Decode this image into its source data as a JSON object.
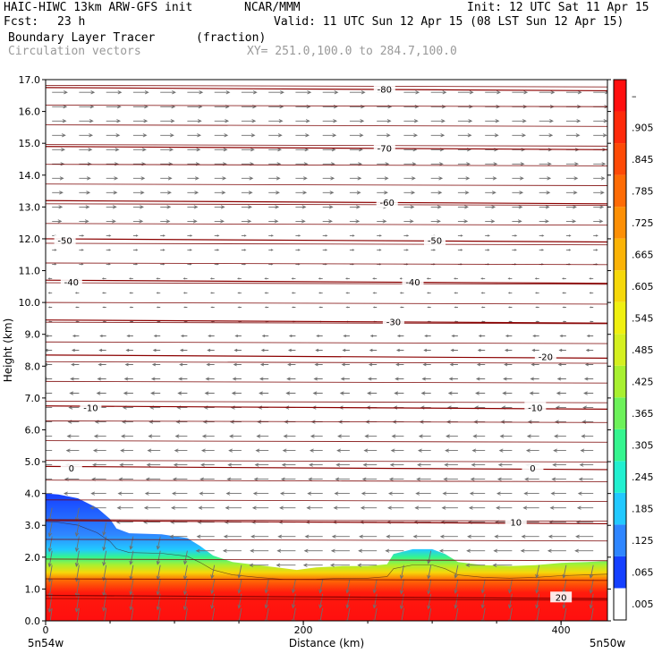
{
  "header": {
    "model": "HAIC-HIWC 13km ARW-GFS init",
    "org": "NCAR/MMM",
    "init": "Init: 12 UTC Sat 11 Apr 15",
    "fcst_label": "Fcst:",
    "fcst_value": "23 h",
    "valid": "Valid: 11 UTC Sun 12 Apr 15 (08 LST Sun 12 Apr 15)",
    "field": "Boundary Layer Tracer",
    "field_units": "(fraction)",
    "vectors": "Circulation vectors",
    "xy": "XY= 251.0,100.0 to 284.7,100.0"
  },
  "chart_data": {
    "type": "heatmap",
    "xlabel": "Distance (km)",
    "ylabel": "Height (km)",
    "xlim": [
      0,
      436
    ],
    "ylim": [
      0,
      17
    ],
    "x_ticks": [
      "0",
      "200",
      "400"
    ],
    "x_end_labels": {
      "left": "5n54w",
      "right": "5n50w"
    },
    "y_ticks": [
      "0.0",
      "1.0",
      "2.0",
      "3.0",
      "4.0",
      "5.0",
      "6.0",
      "7.0",
      "8.0",
      "9.0",
      "10.0",
      "11.0",
      "12.0",
      "13.0",
      "14.0",
      "15.0",
      "16.0",
      "17.0"
    ],
    "colorbar": {
      "labels": [
        ".005",
        ".065",
        ".125",
        ".185",
        ".245",
        ".305",
        ".365",
        ".425",
        ".485",
        ".545",
        ".605",
        ".665",
        ".725",
        ".785",
        ".845",
        ".905",
        "–"
      ],
      "colors": [
        "#ffffff",
        "#1540ff",
        "#2f86ff",
        "#22c9ff",
        "#22f0d0",
        "#35f58f",
        "#6df25a",
        "#a8f030",
        "#d5f020",
        "#f0f010",
        "#f6d80a",
        "#fbb306",
        "#fd8f05",
        "#fe6b05",
        "#fe4a06",
        "#fe2a0a",
        "#ff0f0f"
      ]
    },
    "tracer_top_km": [
      [
        0,
        4.0
      ],
      [
        10,
        3.97
      ],
      [
        25,
        3.85
      ],
      [
        40,
        3.55
      ],
      [
        50,
        3.2
      ],
      [
        55,
        2.9
      ],
      [
        65,
        2.75
      ],
      [
        90,
        2.72
      ],
      [
        110,
        2.6
      ],
      [
        120,
        2.35
      ],
      [
        130,
        2.05
      ],
      [
        145,
        1.85
      ],
      [
        165,
        1.75
      ],
      [
        185,
        1.65
      ],
      [
        195,
        1.6
      ],
      [
        210,
        1.68
      ],
      [
        230,
        1.72
      ],
      [
        250,
        1.72
      ],
      [
        265,
        1.78
      ],
      [
        270,
        2.1
      ],
      [
        285,
        2.25
      ],
      [
        300,
        2.25
      ],
      [
        310,
        2.1
      ],
      [
        320,
        1.85
      ],
      [
        340,
        1.75
      ],
      [
        360,
        1.72
      ],
      [
        380,
        1.75
      ],
      [
        400,
        1.82
      ],
      [
        420,
        1.85
      ],
      [
        436,
        1.88
      ]
    ],
    "temperature_contours": [
      {
        "label": "-80",
        "h": 16.7,
        "at_x": [
          263
        ]
      },
      {
        "label": "-70",
        "h": 14.85,
        "at_x": [
          263
        ]
      },
      {
        "label": "-60",
        "h": 13.15,
        "at_x": [
          265
        ]
      },
      {
        "label": "-50",
        "h": 11.95,
        "at_x": [
          15,
          302
        ]
      },
      {
        "label": "-40",
        "h": 10.65,
        "at_x": [
          20,
          285
        ]
      },
      {
        "label": "-30",
        "h": 9.4,
        "at_x": [
          270
        ]
      },
      {
        "label": "-20",
        "h": 8.3,
        "at_x": [
          388
        ]
      },
      {
        "label": "-10",
        "h": 6.7,
        "at_x": [
          35,
          380
        ]
      },
      {
        "label": "0",
        "h": 4.8,
        "at_x": [
          20,
          378
        ]
      },
      {
        "label": "10",
        "h": 3.1,
        "at_x": [
          365
        ]
      },
      {
        "label": "20",
        "h": 0.75,
        "at_x": [
          400
        ]
      }
    ],
    "wind_vectors": {
      "upper_direction": "eastward",
      "lower_direction": "westward",
      "reversal_height_km": 12.4
    }
  }
}
